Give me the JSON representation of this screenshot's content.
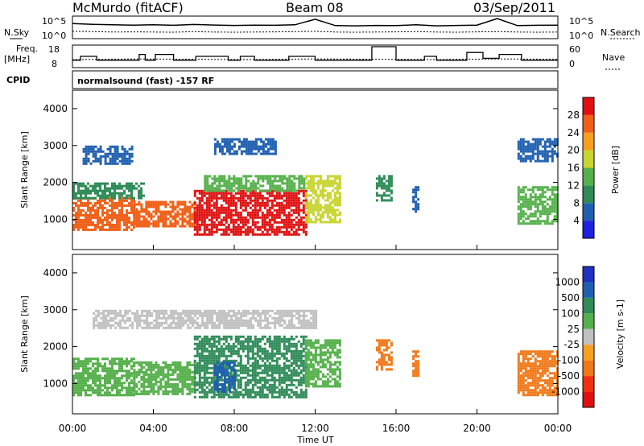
{
  "header": {
    "station": "McMurdo (fitACF)",
    "beam": "Beam 08",
    "date": "03/Sep/2011",
    "program": "normalsound (fast) -157 RF"
  },
  "labels": {
    "nsky": "N.Sky",
    "nsearch": "N.Search",
    "freq_line1": "Freq.",
    "freq_line2": "[MHz]",
    "nave": "Nave",
    "cpid": "CPID",
    "nsky_ticks": [
      "10^5",
      "10^0"
    ],
    "nsearch_ticks": [
      "10^5",
      "10^0"
    ],
    "freq_ticks": [
      "18",
      "8"
    ],
    "nave_ticks": [
      "60",
      "0"
    ]
  },
  "colors": {
    "power": [
      "#2020e0",
      "#1f5fb0",
      "#2e8b57",
      "#55b04b",
      "#c8d430",
      "#f6a020",
      "#f06018",
      "#e01010"
    ],
    "velocity": [
      "#2030c0",
      "#1f5fb0",
      "#2e8b57",
      "#55b04b",
      "#c0c0c0",
      "#f6a020",
      "#f07818",
      "#f03010",
      "#e01010"
    ]
  },
  "chart_data": [
    {
      "type": "line",
      "panel": "noise",
      "xlabel": "",
      "ylabel": "N.Sky",
      "y2label": "N.Search",
      "yscale": "log",
      "ylim": [
        1,
        100000
      ],
      "series": [
        {
          "name": "N.Sky",
          "x": [
            0,
            1,
            2,
            3,
            4,
            5,
            6,
            7,
            8,
            9,
            10,
            11,
            12,
            13,
            14,
            15,
            16,
            17,
            18,
            19,
            20,
            21,
            22,
            23,
            24
          ],
          "y": [
            3000,
            2000,
            1500,
            1200,
            1500,
            1100,
            1800,
            1300,
            1000,
            1200,
            1100,
            1500,
            40000,
            900,
            800,
            1000,
            900,
            1500,
            800,
            1000,
            1200,
            60000,
            900,
            1100,
            1200
          ]
        },
        {
          "name": "N.Search",
          "x": [
            0,
            1,
            2,
            3,
            4,
            5,
            6,
            7,
            8,
            9,
            10,
            11,
            12,
            13,
            14,
            15,
            16,
            17,
            18,
            19,
            20,
            21,
            22,
            23,
            24
          ],
          "y": [
            30,
            25,
            20,
            22,
            20,
            18,
            25,
            20,
            18,
            20,
            22,
            25,
            30,
            20,
            18,
            20,
            22,
            25,
            20,
            18,
            22,
            25,
            20,
            18,
            20
          ]
        }
      ]
    },
    {
      "type": "line",
      "panel": "frequency",
      "xlabel": "",
      "ylabel": "Freq. [MHz]",
      "y2label": "Nave",
      "ylim": [
        8,
        18
      ],
      "y2lim": [
        0,
        60
      ],
      "series": [
        {
          "name": "Freq.",
          "x": [
            0,
            0.4,
            0.8,
            1.2,
            2.2,
            3.3,
            3.6,
            4.1,
            5.0,
            5.3,
            6.1,
            6.7,
            7.7,
            8.3,
            9.0,
            10.0,
            10.7,
            12.0,
            13.5,
            14.6,
            14.8,
            16.0,
            17.4,
            18.0,
            19.5,
            20.3,
            21.1,
            22.2,
            24
          ],
          "y": [
            11,
            13,
            13,
            11,
            11,
            14,
            11,
            14,
            11,
            11,
            13,
            13,
            11,
            13,
            11,
            11,
            13,
            11,
            11,
            11,
            18,
            11,
            13,
            11,
            15,
            12,
            14,
            11,
            11
          ]
        },
        {
          "name": "Nave",
          "x": [
            0,
            3,
            6,
            9,
            12,
            15,
            18,
            21,
            24
          ],
          "y": [
            20,
            22,
            21,
            20,
            22,
            21,
            20,
            22,
            21
          ]
        }
      ]
    },
    {
      "type": "heatmap",
      "panel": "power",
      "title": "",
      "xlabel": "",
      "ylabel": "Slant Range [km]",
      "colorbar_label": "Power [dB]",
      "colorbar_ticks": [
        "4",
        "8",
        "12",
        "16",
        "20",
        "24",
        "28"
      ],
      "xlim": [
        0,
        24
      ],
      "ylim": [
        180,
        4500
      ],
      "yticks": [
        1000,
        2000,
        3000,
        4000
      ],
      "regions": [
        {
          "t0": 0.0,
          "t1": 3.0,
          "r0": 700,
          "r1": 1600,
          "level": 27
        },
        {
          "t0": 0.0,
          "t1": 3.5,
          "r0": 1600,
          "r1": 2000,
          "level": 10
        },
        {
          "t0": 0.5,
          "t1": 3.0,
          "r0": 2500,
          "r1": 3000,
          "level": 6
        },
        {
          "t0": 3.0,
          "t1": 6.0,
          "r0": 800,
          "r1": 1500,
          "level": 24
        },
        {
          "t0": 6.0,
          "t1": 11.5,
          "r0": 600,
          "r1": 1800,
          "level": 30
        },
        {
          "t0": 6.5,
          "t1": 11.5,
          "r0": 1800,
          "r1": 2200,
          "level": 12
        },
        {
          "t0": 7.0,
          "t1": 10.0,
          "r0": 2800,
          "r1": 3200,
          "level": 6
        },
        {
          "t0": 11.5,
          "t1": 13.2,
          "r0": 900,
          "r1": 2200,
          "level": 18
        },
        {
          "t0": 15.0,
          "t1": 15.8,
          "r0": 1500,
          "r1": 2200,
          "level": 10
        },
        {
          "t0": 16.8,
          "t1": 17.1,
          "r0": 1200,
          "r1": 1900,
          "level": 6
        },
        {
          "t0": 22.0,
          "t1": 24.0,
          "r0": 900,
          "r1": 1900,
          "level": 14
        },
        {
          "t0": 22.0,
          "t1": 24.0,
          "r0": 2600,
          "r1": 3200,
          "level": 6
        }
      ]
    },
    {
      "type": "heatmap",
      "panel": "velocity",
      "title": "",
      "xlabel": "Time UT",
      "ylabel": "Slant Range [km]",
      "colorbar_label": "Velocity [m s-1]",
      "colorbar_ticks": [
        "1000",
        "500",
        "100",
        "25",
        "-25",
        "-100",
        "-500",
        "-1000"
      ],
      "xlim": [
        0,
        24
      ],
      "ylim": [
        180,
        4500
      ],
      "xticks": [
        "00:00",
        "04:00",
        "08:00",
        "12:00",
        "16:00",
        "20:00",
        "00:00"
      ],
      "yticks": [
        1000,
        2000,
        3000,
        4000
      ],
      "regions": [
        {
          "t0": 0.0,
          "t1": 3.0,
          "r0": 700,
          "r1": 1700,
          "level": 80
        },
        {
          "t0": 3.0,
          "t1": 6.0,
          "r0": 700,
          "r1": 1600,
          "level": 60
        },
        {
          "t0": 6.0,
          "t1": 11.5,
          "r0": 600,
          "r1": 2300,
          "level": 120
        },
        {
          "t0": 7.0,
          "t1": 8.0,
          "r0": 800,
          "r1": 1600,
          "level": 700
        },
        {
          "t0": 11.5,
          "t1": 13.2,
          "r0": 900,
          "r1": 2200,
          "level": 50
        },
        {
          "t0": 15.0,
          "t1": 15.8,
          "r0": 1400,
          "r1": 2200,
          "level": -300
        },
        {
          "t0": 16.8,
          "t1": 17.1,
          "r0": 1200,
          "r1": 1900,
          "level": -300
        },
        {
          "t0": 22.0,
          "t1": 24.0,
          "r0": 700,
          "r1": 1900,
          "level": -300
        },
        {
          "t0": 1.0,
          "t1": 12.0,
          "r0": 2500,
          "r1": 3000,
          "level": 0
        }
      ]
    }
  ]
}
